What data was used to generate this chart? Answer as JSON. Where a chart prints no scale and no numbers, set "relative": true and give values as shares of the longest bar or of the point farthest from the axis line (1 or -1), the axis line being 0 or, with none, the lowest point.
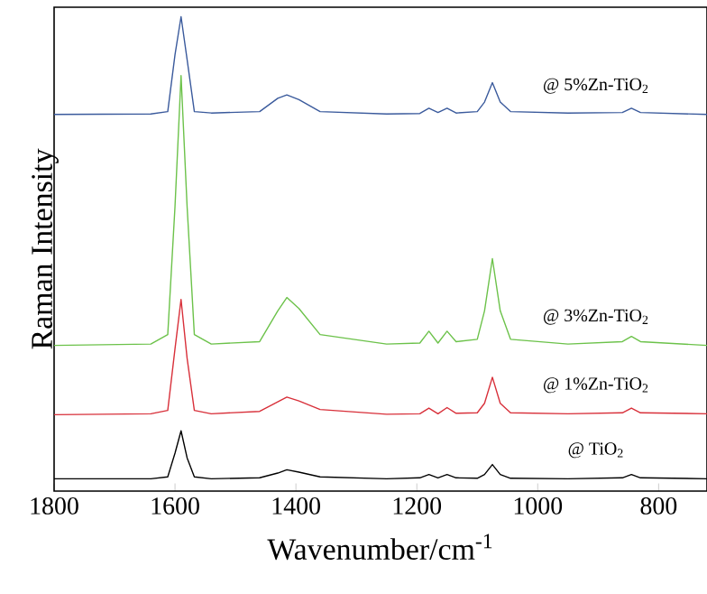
{
  "chart_data": {
    "type": "line",
    "relative": true,
    "xlabel": "Wavenumber/cm$^{-1}$",
    "ylabel": "Raman Intensity",
    "xlim": [
      1800,
      720
    ],
    "xticks": [
      1800,
      1600,
      1400,
      1200,
      1000,
      800
    ],
    "x": [
      1800,
      1640,
      1612,
      1600,
      1590,
      1580,
      1568,
      1540,
      1460,
      1430,
      1415,
      1395,
      1360,
      1250,
      1195,
      1180,
      1165,
      1150,
      1135,
      1100,
      1088,
      1075,
      1062,
      1045,
      950,
      860,
      845,
      830,
      720
    ],
    "series": [
      {
        "color": "#000000",
        "values": [
          0.026,
          0.026,
          0.03,
          0.08,
          0.127,
          0.07,
          0.03,
          0.026,
          0.028,
          0.038,
          0.045,
          0.04,
          0.03,
          0.026,
          0.028,
          0.035,
          0.028,
          0.035,
          0.028,
          0.027,
          0.035,
          0.056,
          0.035,
          0.027,
          0.026,
          0.028,
          0.035,
          0.028,
          0.026
        ]
      },
      {
        "color": "#d8303a",
        "values": [
          0.161,
          0.163,
          0.17,
          0.3,
          0.404,
          0.28,
          0.17,
          0.163,
          0.168,
          0.188,
          0.198,
          0.19,
          0.172,
          0.162,
          0.163,
          0.175,
          0.163,
          0.176,
          0.164,
          0.165,
          0.185,
          0.24,
          0.185,
          0.165,
          0.163,
          0.165,
          0.175,
          0.165,
          0.163
        ]
      },
      {
        "color": "#6cc24a",
        "values": [
          0.307,
          0.31,
          0.33,
          0.6,
          0.876,
          0.6,
          0.33,
          0.31,
          0.315,
          0.38,
          0.408,
          0.385,
          0.33,
          0.31,
          0.312,
          0.337,
          0.312,
          0.337,
          0.315,
          0.32,
          0.38,
          0.49,
          0.38,
          0.32,
          0.31,
          0.315,
          0.326,
          0.315,
          0.307
        ]
      },
      {
        "color": "#3a5a9c",
        "values": [
          0.794,
          0.795,
          0.8,
          0.92,
          1.0,
          0.91,
          0.8,
          0.797,
          0.8,
          0.828,
          0.835,
          0.825,
          0.8,
          0.795,
          0.796,
          0.807,
          0.798,
          0.807,
          0.797,
          0.8,
          0.82,
          0.861,
          0.82,
          0.8,
          0.797,
          0.798,
          0.807,
          0.798,
          0.794
        ]
      }
    ],
    "annotations": [
      "@ 5%Zn-TiO$_{2}$",
      "@ 3%Zn-TiO$_{2}$",
      "@ 1%Zn-TiO$_{2}$",
      "@ TiO$_{2}$"
    ]
  }
}
